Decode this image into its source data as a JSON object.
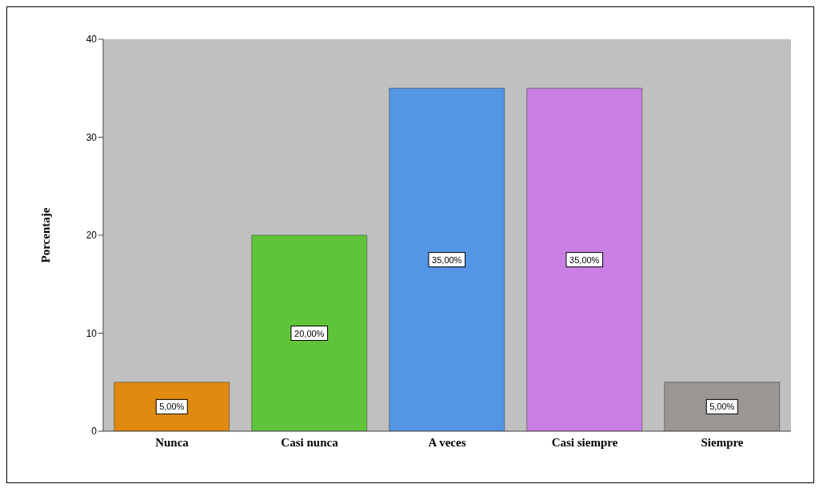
{
  "chart_data": {
    "type": "bar",
    "ylabel": "Porcentaje",
    "categories": [
      "Nunca",
      "Casi nunca",
      "A veces",
      "Casi siempre",
      "Siempre"
    ],
    "values": [
      5,
      20,
      35,
      35,
      5
    ],
    "colors": [
      "#e08a10",
      "#60c43a",
      "#5595e5",
      "#c97fe3",
      "#9a9694"
    ],
    "value_labels": [
      "5,00%",
      "20,00%",
      "35,00%",
      "35,00%",
      "5,00%"
    ],
    "ylim": [
      0,
      40
    ],
    "yticks": [
      0,
      10,
      20,
      30,
      40
    ],
    "grid": false
  }
}
